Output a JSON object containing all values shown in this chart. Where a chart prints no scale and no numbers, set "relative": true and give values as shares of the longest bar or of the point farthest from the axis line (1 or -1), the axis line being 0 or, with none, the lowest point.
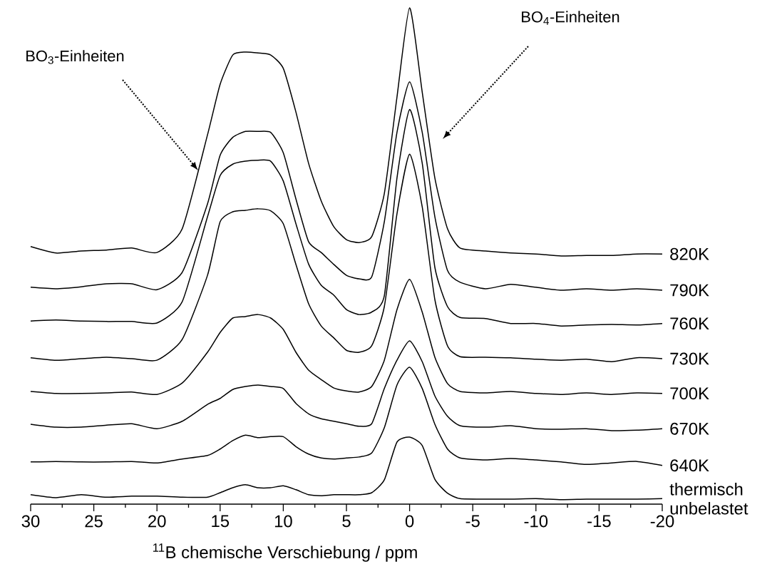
{
  "chart_data": {
    "type": "line",
    "relative": true,
    "xlabel": "$^{11}$B  chemische Verschiebung / ppm",
    "xlim": [
      30,
      -20
    ],
    "xticks": [
      30,
      {
        "value": 27.5,
        "label": null
      },
      25,
      {
        "value": 22.5,
        "label": null
      },
      20,
      {
        "value": 17.5,
        "label": null
      },
      15,
      {
        "value": 12.5,
        "label": null
      },
      10,
      {
        "value": 7.5,
        "label": null
      },
      5,
      {
        "value": 2.5,
        "label": null
      },
      0,
      {
        "value": -2.5,
        "label": null
      },
      -5,
      {
        "value": -7.5,
        "label": null
      },
      -10,
      {
        "value": -12.5,
        "label": null
      },
      -15,
      {
        "value": -17.5,
        "label": null
      },
      -20
    ],
    "x": [
      30,
      28,
      26,
      24,
      22,
      20,
      18,
      16,
      15,
      14,
      13,
      12,
      11,
      10,
      9,
      8,
      7,
      6,
      5,
      4,
      3,
      2,
      1,
      0,
      -1,
      -2,
      -3,
      -4,
      -6,
      -8,
      -10,
      -12,
      -14,
      -16,
      -18,
      -20
    ],
    "annotations": [
      "BO$_{3}$-Einheiten",
      "BO$_{4}$-Einheiten"
    ],
    "series": [
      {
        "name": "820K",
        "color": "#000000",
        "values": [
          0.519,
          0.506,
          0.51,
          0.512,
          0.516,
          0.507,
          0.555,
          0.744,
          0.846,
          0.905,
          0.911,
          0.909,
          0.905,
          0.878,
          0.79,
          0.687,
          0.611,
          0.559,
          0.533,
          0.527,
          0.539,
          0.626,
          0.82,
          1,
          0.83,
          0.657,
          0.555,
          0.516,
          0.51,
          0.506,
          0.504,
          0.5,
          0.501,
          0.501,
          0.504,
          0.504
        ]
      },
      {
        "name": "790K",
        "color": "#000000",
        "values": [
          0.437,
          0.434,
          0.438,
          0.444,
          0.444,
          0.432,
          0.467,
          0.605,
          0.703,
          0.739,
          0.751,
          0.751,
          0.749,
          0.708,
          0.615,
          0.529,
          0.507,
          0.483,
          0.461,
          0.454,
          0.458,
          0.569,
          0.749,
          0.851,
          0.749,
          0.579,
          0.471,
          0.447,
          0.434,
          0.443,
          0.437,
          0.431,
          0.434,
          0.431,
          0.434,
          0.431
        ]
      },
      {
        "name": "760K",
        "color": "#000000",
        "values": [
          0.369,
          0.371,
          0.369,
          0.368,
          0.368,
          0.365,
          0.408,
          0.579,
          0.662,
          0.685,
          0.691,
          0.693,
          0.691,
          0.651,
          0.565,
          0.484,
          0.441,
          0.421,
          0.392,
          0.382,
          0.387,
          0.42,
          0.657,
          0.795,
          0.687,
          0.477,
          0.398,
          0.376,
          0.374,
          0.364,
          0.364,
          0.359,
          0.361,
          0.362,
          0.361,
          0.364
        ]
      },
      {
        "name": "730K",
        "color": "#000000",
        "values": [
          0.295,
          0.29,
          0.293,
          0.296,
          0.293,
          0.29,
          0.332,
          0.461,
          0.569,
          0.589,
          0.592,
          0.595,
          0.591,
          0.565,
          0.483,
          0.404,
          0.359,
          0.335,
          0.31,
          0.306,
          0.319,
          0.398,
          0.585,
          0.705,
          0.599,
          0.412,
          0.319,
          0.297,
          0.296,
          0.295,
          0.292,
          0.29,
          0.292,
          0.287,
          0.295,
          0.293
        ]
      },
      {
        "name": "700K",
        "color": "#000000",
        "values": [
          0.227,
          0.223,
          0.223,
          0.224,
          0.226,
          0.221,
          0.244,
          0.306,
          0.346,
          0.375,
          0.378,
          0.382,
          0.375,
          0.352,
          0.306,
          0.27,
          0.251,
          0.234,
          0.228,
          0.226,
          0.237,
          0.29,
          0.392,
          0.453,
          0.387,
          0.296,
          0.243,
          0.227,
          0.224,
          0.227,
          0.223,
          0.221,
          0.224,
          0.221,
          0.224,
          0.223
        ]
      },
      {
        "name": "670K",
        "color": "#000000",
        "values": [
          0.161,
          0.155,
          0.155,
          0.159,
          0.162,
          0.152,
          0.167,
          0.201,
          0.213,
          0.231,
          0.237,
          0.24,
          0.237,
          0.233,
          0.203,
          0.182,
          0.172,
          0.167,
          0.162,
          0.157,
          0.162,
          0.233,
          0.29,
          0.329,
          0.287,
          0.218,
          0.177,
          0.158,
          0.155,
          0.158,
          0.152,
          0.151,
          0.152,
          0.148,
          0.149,
          0.152
        ]
      },
      {
        "name": "640K",
        "color": "#000000",
        "values": [
          0.085,
          0.086,
          0.085,
          0.085,
          0.086,
          0.083,
          0.091,
          0.098,
          0.111,
          0.128,
          0.139,
          0.134,
          0.136,
          0.136,
          0.116,
          0.101,
          0.093,
          0.091,
          0.093,
          0.095,
          0.103,
          0.154,
          0.24,
          0.276,
          0.233,
          0.161,
          0.111,
          0.093,
          0.089,
          0.092,
          0.089,
          0.085,
          0.08,
          0.083,
          0.086,
          0.078
        ]
      },
      {
        "name": "thermisch unbelastet",
        "color": "#000000",
        "values": [
          0.019,
          0.013,
          0.019,
          0.014,
          0.016,
          0.016,
          0.014,
          0.014,
          0.023,
          0.033,
          0.039,
          0.033,
          0.033,
          0.037,
          0.029,
          0.019,
          0.017,
          0.019,
          0.019,
          0.019,
          0.023,
          0.049,
          0.125,
          0.135,
          0.118,
          0.05,
          0.022,
          0.011,
          0.01,
          0.01,
          0.011,
          0.009,
          0.01,
          0.01,
          0.01,
          0.011
        ]
      }
    ]
  }
}
